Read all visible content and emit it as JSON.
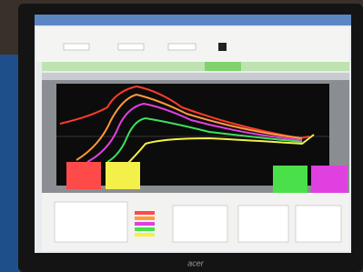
{
  "monitor": {
    "brand": "acer"
  }
}
